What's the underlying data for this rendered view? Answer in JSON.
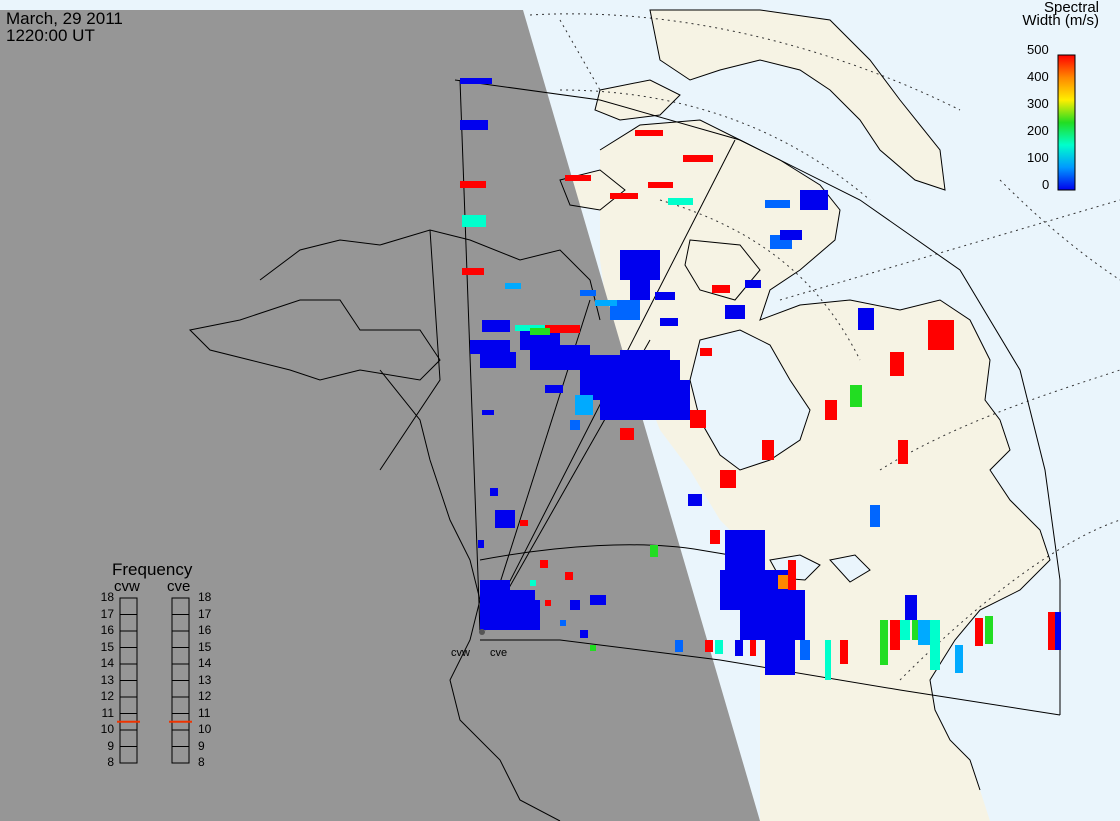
{
  "header": {
    "date": "March, 29 2011",
    "time": "1220:00 UT"
  },
  "colorbar": {
    "title_line1": "Spectral",
    "title_line2": "Width (m/s)",
    "ticks": [
      "500",
      "400",
      "300",
      "200",
      "100",
      "0"
    ],
    "min": 0,
    "max": 500,
    "colors": [
      "#ff0000",
      "#ff8800",
      "#ffee00",
      "#22dd22",
      "#00ffcc",
      "#0099ff",
      "#0000ee"
    ]
  },
  "frequency": {
    "title": "Frequency",
    "radars": [
      {
        "label": "cvw",
        "value": 10.5,
        "min": 8,
        "max": 18
      },
      {
        "label": "cve",
        "value": 10.5,
        "min": 8,
        "max": 18
      }
    ],
    "ticks": [
      "18",
      "17",
      "16",
      "15",
      "14",
      "13",
      "12",
      "11",
      "10",
      "9",
      "8"
    ]
  },
  "sites": {
    "west": "cvw",
    "east": "cve"
  },
  "map": {
    "night_color": "#969696",
    "ocean_color": "#eaf5fc",
    "land_color": "#f6f3e4",
    "coast_color": "#000000"
  }
}
